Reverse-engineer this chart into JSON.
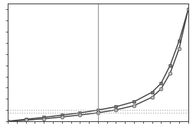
{
  "desorption_x": [
    0,
    0.1,
    0.2,
    0.3,
    0.4,
    0.5,
    0.6,
    0.7,
    0.8,
    0.85,
    0.9,
    0.95,
    1.0
  ],
  "desorption_y": [
    0,
    0.018,
    0.035,
    0.055,
    0.075,
    0.1,
    0.13,
    0.175,
    0.26,
    0.34,
    0.5,
    0.72,
    1.0
  ],
  "adsorption_x": [
    0,
    0.1,
    0.2,
    0.3,
    0.4,
    0.5,
    0.6,
    0.7,
    0.8,
    0.85,
    0.9,
    0.95,
    1.0
  ],
  "adsorption_y": [
    0,
    0.01,
    0.022,
    0.038,
    0.056,
    0.076,
    0.102,
    0.14,
    0.215,
    0.29,
    0.43,
    0.65,
    1.0
  ],
  "vline_x": 0.5,
  "hline1_y": 0.1,
  "hline2_y": 0.076,
  "xlim": [
    0,
    1.0
  ],
  "ylim": [
    0,
    1.05
  ],
  "bg_color": "#ffffff",
  "line_color": "#444444",
  "dashed_color": "#aaaaaa",
  "vline_color": "#999999",
  "marker_desorption": "s",
  "marker_adsorption": "o",
  "marker_size_desorption": 3.5,
  "marker_size_adsorption": 3.5,
  "linewidth": 1.1,
  "xtick_count": 21,
  "ytick_count": 11
}
